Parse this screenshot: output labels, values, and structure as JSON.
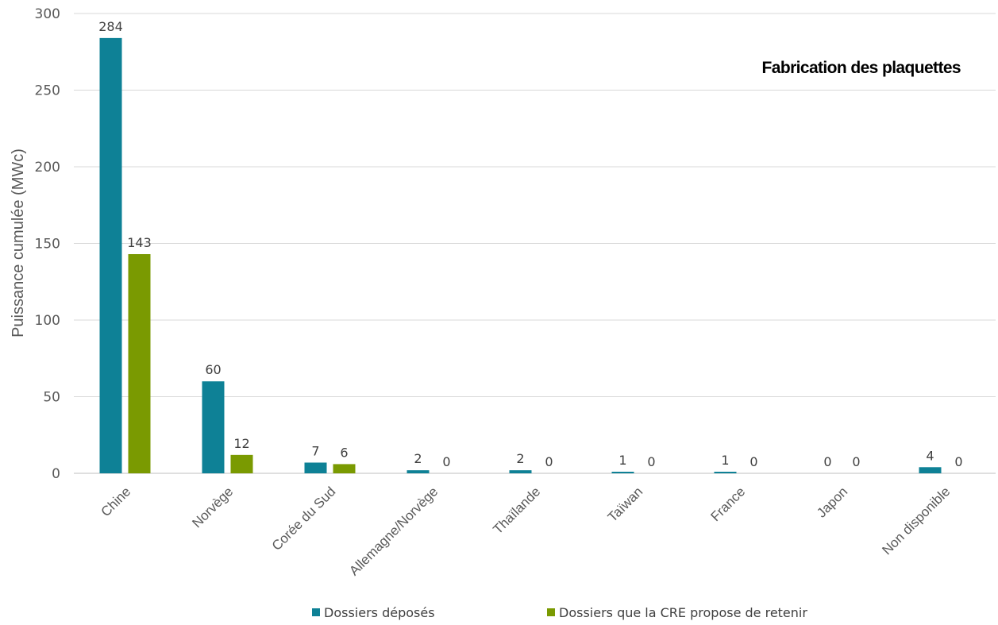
{
  "chart_data": {
    "type": "bar",
    "title": "Fabrication des plaquettes",
    "xlabel": "",
    "ylabel": "Puissance cumulée (MWc)",
    "ylim": [
      0,
      300
    ],
    "yticks": [
      0,
      50,
      100,
      150,
      200,
      250,
      300
    ],
    "grid": true,
    "legend_position": "bottom",
    "categories": [
      "Chine",
      "Norvège",
      "Corée du Sud",
      "Allemagne/Norvège",
      "Thaïlande",
      "Taïwan",
      "France",
      "Japon",
      "Non disponible"
    ],
    "series": [
      {
        "name": "Dossiers déposés",
        "color": "#0E8196",
        "values": [
          284,
          60,
          7,
          2,
          2,
          1,
          1,
          0,
          4
        ],
        "labels": [
          "284",
          "60",
          "7",
          "2",
          "2",
          "1",
          "1",
          "0",
          "4"
        ]
      },
      {
        "name": "Dossiers que la CRE propose de retenir",
        "color": "#7A9A01",
        "values": [
          143,
          12,
          6,
          0,
          0,
          0,
          0,
          0,
          0
        ],
        "labels": [
          "143",
          "12",
          "6",
          "0",
          "0",
          "0",
          "0",
          "0",
          "0"
        ]
      }
    ]
  }
}
